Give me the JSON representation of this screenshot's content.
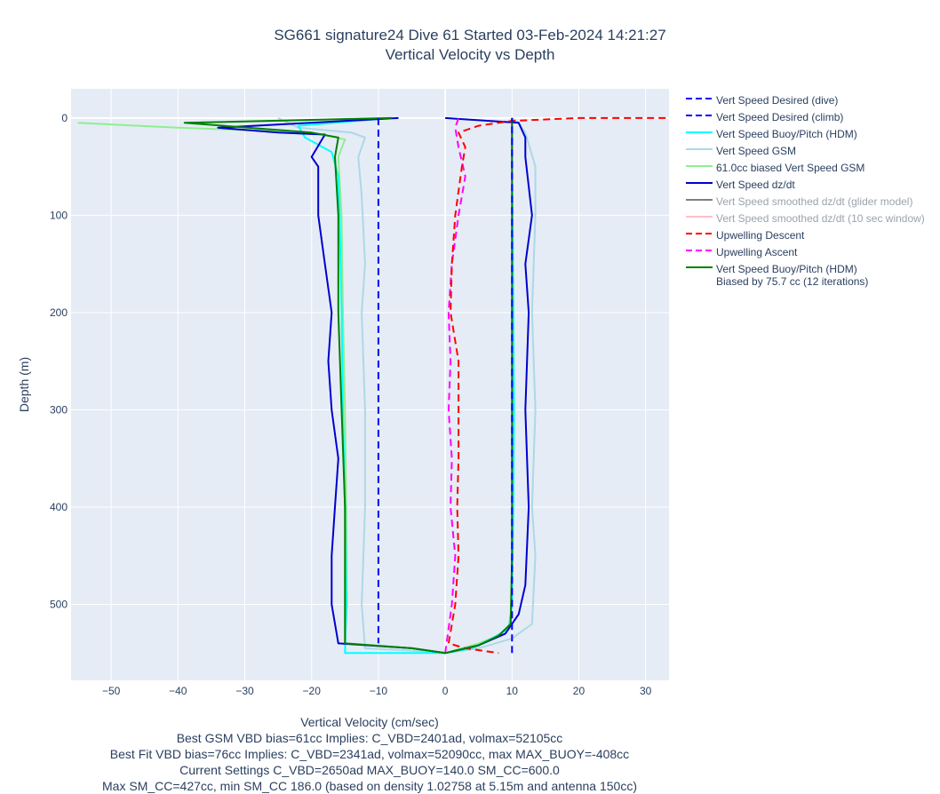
{
  "chart_data": {
    "type": "line",
    "title": "SG661 signature24 Dive 61 Started 03-Feb-2024 14:21:27",
    "subtitle": "Vertical Velocity vs Depth",
    "xlabel": "Vertical Velocity (cm/sec)",
    "ylabel": "Depth (m)",
    "xlim": [
      -56,
      33.5
    ],
    "ylim": [
      578,
      -30
    ],
    "y_reversed": true,
    "xticks": [
      -50,
      -40,
      -30,
      -20,
      -10,
      0,
      10,
      20,
      30
    ],
    "yticks": [
      0,
      100,
      200,
      300,
      400,
      500
    ],
    "grid": true,
    "legend_position": "right",
    "plot_background": "#e5ecf6",
    "series": [
      {
        "name": "Vert Speed Desired (dive)",
        "color": "#0000ff",
        "dash": true,
        "points": [
          [
            -10,
            0
          ],
          [
            -10,
            540
          ]
        ]
      },
      {
        "name": "Vert Speed Desired (climb)",
        "color": "#0000ff",
        "dash": true,
        "points": [
          [
            10,
            550
          ],
          [
            10,
            0
          ]
        ]
      },
      {
        "name": "Vert Speed Buoy/Pitch (HDM)",
        "color": "#00ffff",
        "dash": false,
        "points": [
          [
            -8,
            0
          ],
          [
            -22,
            8
          ],
          [
            -21,
            20
          ],
          [
            -17,
            35
          ],
          [
            -16,
            60
          ],
          [
            -15.8,
            100
          ],
          [
            -15.5,
            200
          ],
          [
            -15.3,
            300
          ],
          [
            -15,
            400
          ],
          [
            -14.8,
            500
          ],
          [
            -15,
            550
          ],
          [
            -12,
            550
          ],
          [
            -4,
            550
          ],
          [
            0,
            550
          ],
          [
            4,
            545
          ],
          [
            7,
            535
          ],
          [
            9.5,
            525
          ],
          [
            10,
            500
          ],
          [
            10.2,
            400
          ],
          [
            10.3,
            300
          ],
          [
            10.2,
            200
          ],
          [
            10.1,
            100
          ],
          [
            10,
            50
          ],
          [
            10,
            0
          ]
        ]
      },
      {
        "name": "Vert Speed GSM",
        "color": "#add8e6",
        "dash": false,
        "points": [
          [
            -25,
            0
          ],
          [
            -22,
            10
          ],
          [
            -14,
            15
          ],
          [
            -12,
            20
          ],
          [
            -13,
            40
          ],
          [
            -12.5,
            80
          ],
          [
            -12,
            150
          ],
          [
            -12.5,
            200
          ],
          [
            -12,
            300
          ],
          [
            -12,
            400
          ],
          [
            -12.5,
            500
          ],
          [
            -12,
            545
          ],
          [
            -4,
            548
          ],
          [
            0,
            550
          ],
          [
            5,
            545
          ],
          [
            10,
            535
          ],
          [
            13,
            520
          ],
          [
            13.5,
            450
          ],
          [
            13,
            400
          ],
          [
            13.5,
            300
          ],
          [
            13,
            200
          ],
          [
            13.5,
            100
          ],
          [
            13.5,
            50
          ],
          [
            12,
            15
          ],
          [
            11,
            5
          ],
          [
            10,
            0
          ]
        ]
      },
      {
        "name": "61.0cc biased Vert Speed GSM",
        "color": "#90ee90",
        "dash": false,
        "points": [
          [
            -55,
            5
          ],
          [
            -40,
            10
          ],
          [
            -20,
            15
          ],
          [
            -15,
            22
          ],
          [
            -16,
            40
          ],
          [
            -15.5,
            100
          ],
          [
            -15.3,
            200
          ],
          [
            -15,
            300
          ],
          [
            -14.8,
            400
          ],
          [
            -14.7,
            500
          ],
          [
            -15,
            540
          ],
          [
            -5,
            545
          ],
          [
            0,
            550
          ],
          [
            5,
            540
          ],
          [
            8,
            532
          ],
          [
            9.8,
            520
          ],
          [
            10,
            450
          ],
          [
            10,
            400
          ],
          [
            10.1,
            300
          ],
          [
            10,
            200
          ],
          [
            10.1,
            100
          ],
          [
            10,
            50
          ],
          [
            10,
            15
          ],
          [
            10,
            0
          ]
        ]
      },
      {
        "name": "Vert Speed dz/dt",
        "color": "#0000cd",
        "dash": false,
        "points": [
          [
            -7,
            0
          ],
          [
            -34,
            10
          ],
          [
            -25,
            15
          ],
          [
            -18,
            17
          ],
          [
            -20,
            40
          ],
          [
            -19,
            50
          ],
          [
            -19,
            100
          ],
          [
            -18,
            150
          ],
          [
            -17,
            200
          ],
          [
            -17.5,
            250
          ],
          [
            -17,
            300
          ],
          [
            -16,
            350
          ],
          [
            -16.5,
            400
          ],
          [
            -17,
            450
          ],
          [
            -17,
            500
          ],
          [
            -16,
            540
          ],
          [
            -5,
            545
          ],
          [
            0,
            550
          ],
          [
            5,
            542
          ],
          [
            9,
            530
          ],
          [
            11,
            510
          ],
          [
            12,
            480
          ],
          [
            12.5,
            400
          ],
          [
            12,
            300
          ],
          [
            12.5,
            200
          ],
          [
            12,
            150
          ],
          [
            13,
            100
          ],
          [
            12,
            40
          ],
          [
            12,
            20
          ],
          [
            11,
            5
          ],
          [
            0,
            0
          ]
        ]
      },
      {
        "name": "Vert Speed smoothed dz/dt (glider model)",
        "color": "#808080",
        "dash": false,
        "hidden": true,
        "points": []
      },
      {
        "name": "Vert Speed smoothed dz/dt (10 sec window)",
        "color": "#ffc0cb",
        "dash": false,
        "hidden": true,
        "points": []
      },
      {
        "name": "Upwelling Descent",
        "color": "#ff0000",
        "dash": true,
        "points": [
          [
            33,
            0
          ],
          [
            20,
            0
          ],
          [
            10,
            3
          ],
          [
            5,
            8
          ],
          [
            2,
            15
          ],
          [
            3,
            30
          ],
          [
            2.5,
            50
          ],
          [
            1.5,
            100
          ],
          [
            1,
            150
          ],
          [
            0.8,
            200
          ],
          [
            2,
            250
          ],
          [
            2,
            300
          ],
          [
            2,
            350
          ],
          [
            1.8,
            400
          ],
          [
            2,
            450
          ],
          [
            1.5,
            500
          ],
          [
            0.5,
            540
          ],
          [
            3,
            545
          ],
          [
            8,
            550
          ]
        ]
      },
      {
        "name": "Upwelling Ascent",
        "color": "#ff00ff",
        "dash": true,
        "points": [
          [
            0,
            550
          ],
          [
            1,
            500
          ],
          [
            1.5,
            450
          ],
          [
            0.8,
            400
          ],
          [
            1,
            350
          ],
          [
            0.5,
            300
          ],
          [
            0.8,
            250
          ],
          [
            0.5,
            200
          ],
          [
            1,
            150
          ],
          [
            2,
            100
          ],
          [
            3,
            60
          ],
          [
            2,
            30
          ],
          [
            1.5,
            10
          ],
          [
            2,
            0
          ]
        ]
      },
      {
        "name": "Vert Speed Buoy/Pitch (HDM)\nBiased by 75.7 cc (12 iterations)",
        "color": "#008000",
        "dash": false,
        "points": [
          [
            -8,
            0
          ],
          [
            -39,
            5
          ],
          [
            -20,
            15
          ],
          [
            -16,
            20
          ],
          [
            -16.5,
            40
          ],
          [
            -16,
            100
          ],
          [
            -16,
            200
          ],
          [
            -15.5,
            300
          ],
          [
            -15,
            400
          ],
          [
            -15,
            500
          ],
          [
            -15,
            540
          ],
          [
            -5,
            545
          ],
          [
            0,
            550
          ],
          [
            5,
            542
          ],
          [
            8,
            532
          ],
          [
            9.8,
            520
          ],
          [
            10,
            450
          ],
          [
            10,
            400
          ],
          [
            10,
            300
          ],
          [
            10,
            200
          ],
          [
            10,
            100
          ],
          [
            10,
            50
          ],
          [
            10,
            10
          ],
          [
            10,
            0
          ]
        ]
      }
    ],
    "annotations": [
      "Best GSM VBD bias=61cc Implies: C_VBD=2401ad, volmax=52105cc",
      "Best Fit VBD bias=76cc Implies: C_VBD=2341ad, volmax=52090cc, max MAX_BUOY=-408cc",
      "Current Settings C_VBD=2650ad MAX_BUOY=140.0 SM_CC=600.0",
      "Max SM_CC=427cc, min SM_CC 186.0 (based on density 1.02758 at 5.15m and antenna 150cc)"
    ]
  }
}
